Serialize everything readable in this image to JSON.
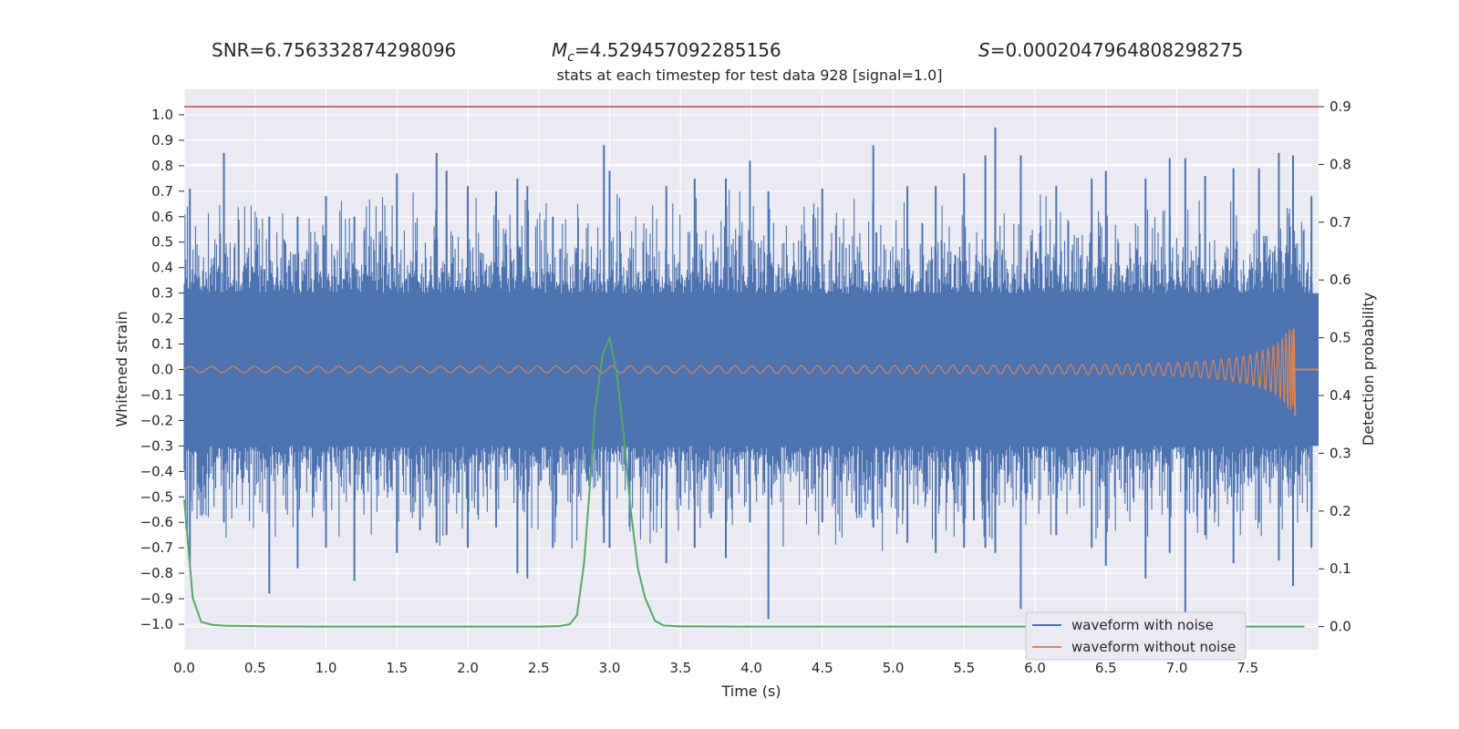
{
  "header": {
    "snr": "SNR=6.756332874298096",
    "mc_symbol": "M",
    "mc_sub": "c",
    "mc_value": "=4.529457092285156",
    "s_symbol": "S",
    "s_value": "=0.0002047964808298275"
  },
  "chart_data": {
    "type": "line",
    "title": "stats at each timestep for test data 928 [signal=1.0]",
    "xlabel": "Time (s)",
    "ylabel": "Whitened strain",
    "y2label": "Detection probability",
    "xlim": [
      0.0,
      8.0
    ],
    "ylim": [
      -1.1,
      1.1
    ],
    "y2lim": [
      -0.04,
      0.93
    ],
    "x_ticks": [
      "0.0",
      "0.5",
      "1.0",
      "1.5",
      "2.0",
      "2.5",
      "3.0",
      "3.5",
      "4.0",
      "4.5",
      "5.0",
      "5.5",
      "6.0",
      "6.5",
      "7.0",
      "7.5"
    ],
    "y_ticks": [
      "1.0",
      "0.9",
      "0.8",
      "0.7",
      "0.6",
      "0.5",
      "0.4",
      "0.3",
      "0.2",
      "0.1",
      "0.0",
      "-0.1",
      "-0.2",
      "-0.3",
      "-0.4",
      "-0.5",
      "-0.6",
      "-0.7",
      "-0.8",
      "-0.9",
      "-1.0"
    ],
    "y2_ticks": [
      "0.9",
      "0.8",
      "0.7",
      "0.6",
      "0.5",
      "0.4",
      "0.3",
      "0.2",
      "0.1",
      "0.0"
    ],
    "threshold": {
      "value": 0.9,
      "axis": "right",
      "color": "#c44e52"
    },
    "grid": true,
    "legend": {
      "placement": "bottom-right"
    },
    "series": [
      {
        "name": "waveform with noise",
        "color": "#4c72b0",
        "axis": "left",
        "noise_band": [
          -0.3,
          0.3
        ],
        "spikes": [
          [
            0.04,
            0.71,
            -0.76
          ],
          [
            0.28,
            0.85,
            -0.6
          ],
          [
            0.6,
            0.6,
            -0.88
          ],
          [
            0.8,
            0.6,
            -0.78
          ],
          [
            1.0,
            0.68,
            -0.7
          ],
          [
            1.2,
            0.6,
            -0.83
          ],
          [
            1.5,
            0.77,
            -0.72
          ],
          [
            1.78,
            0.85,
            -0.68
          ],
          [
            1.85,
            0.78,
            -0.65
          ],
          [
            2.0,
            0.72,
            -0.7
          ],
          [
            2.2,
            0.7,
            -0.62
          ],
          [
            2.35,
            0.75,
            -0.8
          ],
          [
            2.42,
            0.72,
            -0.82
          ],
          [
            2.6,
            0.6,
            -0.7
          ],
          [
            2.96,
            0.88,
            -0.68
          ],
          [
            3.0,
            0.78,
            -0.7
          ],
          [
            3.4,
            0.72,
            -0.76
          ],
          [
            3.6,
            0.75,
            -0.7
          ],
          [
            3.82,
            0.75,
            -0.74
          ],
          [
            3.99,
            0.82,
            -0.6
          ],
          [
            4.12,
            0.7,
            -0.98
          ],
          [
            4.5,
            0.71,
            -0.6
          ],
          [
            4.86,
            0.88,
            -0.62
          ],
          [
            5.1,
            0.72,
            -0.68
          ],
          [
            5.3,
            0.72,
            -0.72
          ],
          [
            5.5,
            0.77,
            -0.7
          ],
          [
            5.65,
            0.84,
            -0.7
          ],
          [
            5.72,
            0.95,
            -0.72
          ],
          [
            5.9,
            0.84,
            -0.94
          ],
          [
            6.15,
            0.72,
            -0.65
          ],
          [
            6.4,
            0.75,
            -0.7
          ],
          [
            6.5,
            0.78,
            -0.77
          ],
          [
            6.78,
            0.75,
            -0.82
          ],
          [
            6.95,
            0.83,
            -0.72
          ],
          [
            7.06,
            0.83,
            -0.98
          ],
          [
            7.2,
            0.76,
            -0.65
          ],
          [
            7.4,
            0.79,
            -0.76
          ],
          [
            7.58,
            0.79,
            -0.6
          ],
          [
            7.72,
            0.85,
            -0.75
          ],
          [
            7.82,
            0.84,
            -0.85
          ],
          [
            7.95,
            0.68,
            -0.7
          ]
        ]
      },
      {
        "name": "waveform without noise",
        "color": "#dd8452",
        "axis": "left",
        "merger_time": 7.83,
        "start_amplitude": 0.012,
        "peak_amplitude": 0.16,
        "end_time": 8.0
      },
      {
        "name": "detection probability",
        "color": "#55a868",
        "axis": "right",
        "x": [
          0.0,
          0.06,
          0.12,
          0.2,
          0.3,
          0.6,
          1.0,
          1.5,
          2.0,
          2.5,
          2.65,
          2.72,
          2.77,
          2.82,
          2.86,
          2.9,
          2.95,
          3.0,
          3.05,
          3.1,
          3.15,
          3.2,
          3.25,
          3.32,
          3.38,
          3.5,
          4.0,
          5.0,
          6.0,
          7.0,
          7.9
        ],
        "values": [
          0.22,
          0.05,
          0.008,
          0.003,
          0.0015,
          0.0005,
          0.0,
          0.0,
          0.0,
          0.0,
          0.001,
          0.004,
          0.02,
          0.11,
          0.24,
          0.38,
          0.47,
          0.5,
          0.44,
          0.33,
          0.2,
          0.1,
          0.05,
          0.01,
          0.002,
          0.0005,
          0.0,
          0.0,
          0.0,
          0.0,
          0.0
        ]
      }
    ]
  }
}
